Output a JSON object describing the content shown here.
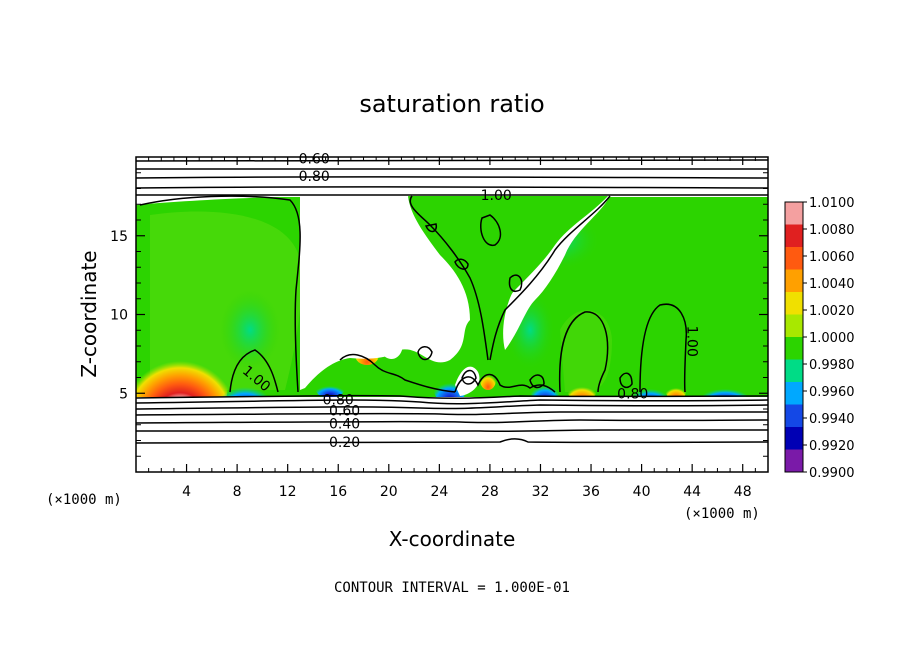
{
  "chart_data": {
    "type": "heatmap",
    "title": "saturation ratio",
    "xlabel": "X-coordinate",
    "ylabel": "Z-coordinate",
    "x_unit": "(×1000 m)",
    "xlim": [
      0,
      50
    ],
    "ylim": [
      0,
      20
    ],
    "x_ticks": [
      "4",
      "8",
      "12",
      "16",
      "20",
      "24",
      "28",
      "32",
      "36",
      "40",
      "44",
      "48"
    ],
    "y_ticks": [
      "5",
      "10",
      "15"
    ],
    "colorbar": {
      "levels": [
        "1.0100",
        "1.0080",
        "1.0060",
        "1.0040",
        "1.0020",
        "1.0000",
        "0.9980",
        "0.9960",
        "0.9940",
        "0.9920",
        "0.9900"
      ],
      "colors": [
        "#f4a0a0",
        "#e02020",
        "#ff5a10",
        "#ffa000",
        "#f0e000",
        "#a8e800",
        "#2cd400",
        "#00dc86",
        "#00a8ff",
        "#1448e6",
        "#0000b4",
        "#7a1aa8"
      ]
    },
    "contour_labels": [
      {
        "text": "0.60",
        "x": 14.1,
        "z": 19.7
      },
      {
        "text": "0.80",
        "x": 14.1,
        "z": 18.6
      },
      {
        "text": "1.00",
        "x": 28.5,
        "z": 17.4
      },
      {
        "text": "1.00",
        "x": 9.4,
        "z": 5.8
      },
      {
        "text": "1.00",
        "x": 43.8,
        "z": 8.3
      },
      {
        "text": "0.80",
        "x": 16.0,
        "z": 4.4
      },
      {
        "text": "0.60",
        "x": 16.5,
        "z": 3.7
      },
      {
        "text": "0.40",
        "x": 16.5,
        "z": 2.9
      },
      {
        "text": "0.20",
        "x": 16.5,
        "z": 1.7
      },
      {
        "text": "0.80",
        "x": 39.3,
        "z": 4.8
      }
    ],
    "footer": "CONTOUR INTERVAL = 1.000E-01"
  }
}
